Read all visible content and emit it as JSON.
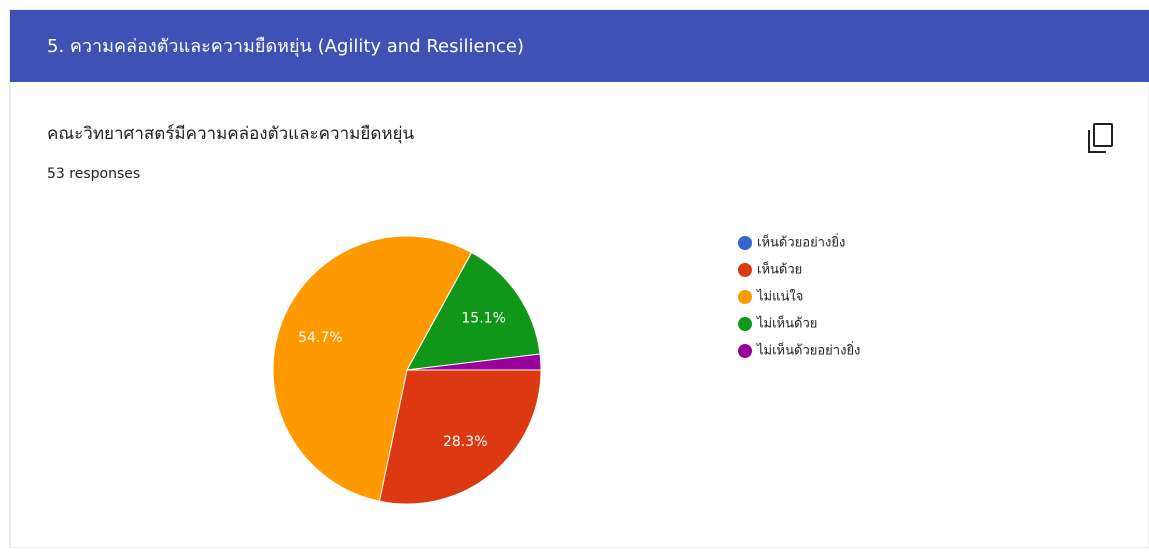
{
  "header": {
    "title": "5. ความคล่องตัวและความยืดหยุ่น (Agility and Resilience)"
  },
  "question": {
    "title": "คณะวิทยาศาสตร์มีความคล่องตัวและความยืดหยุ่น",
    "responses": "53 responses"
  },
  "chart_data": {
    "type": "pie",
    "categories": [
      "เห็นด้วยอย่างยิ่ง",
      "เห็นด้วย",
      "ไม่แน่ใจ",
      "ไม่เห็นด้วย",
      "ไม่เห็นด้วยอย่างยิ่ง"
    ],
    "values": [
      0,
      28.3,
      54.7,
      15.1,
      1.9
    ],
    "value_labels": [
      null,
      "28.3%",
      "54.7%",
      "15.1%",
      null
    ],
    "colors": [
      "#3366cc",
      "#dc3912",
      "#ff9900",
      "#109618",
      "#990099"
    ],
    "legend": "right"
  }
}
